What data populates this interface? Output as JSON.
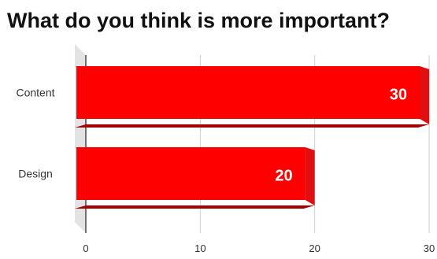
{
  "chart_data": {
    "type": "bar",
    "orientation": "horizontal",
    "style": "3d",
    "title": "What do you think is more important?",
    "categories": [
      "Content",
      "Design"
    ],
    "values": [
      30,
      20
    ],
    "xlim": [
      0,
      30
    ],
    "xticks": [
      "0",
      "10",
      "20",
      "30"
    ],
    "grid": true,
    "data_labels": true,
    "colors": {
      "bar_front": "#ff0000",
      "bar_top": "#ff4a4a",
      "bar_side": "#e01010",
      "bar_shadow": "#a30000",
      "wall": "#e3e3e3",
      "floor": "#eeeeee",
      "grid": "#cfcfcf",
      "axis": "#222222"
    }
  }
}
